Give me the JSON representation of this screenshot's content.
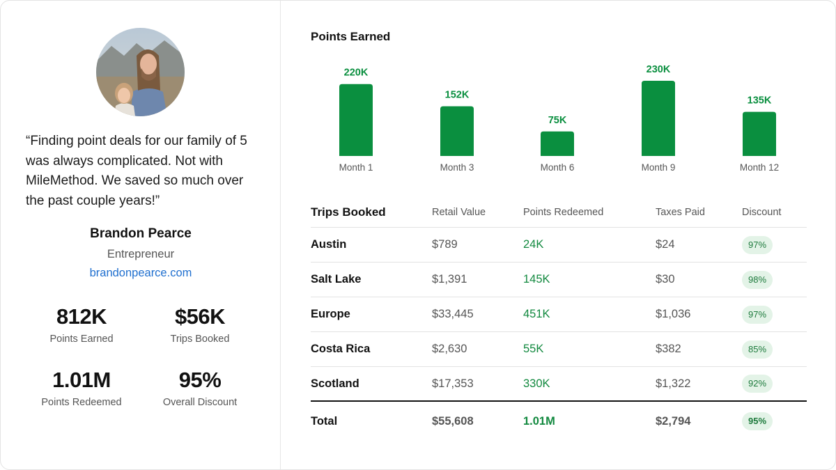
{
  "testimonial": {
    "quote": "“Finding point deals for our family of 5 was always complicated. Not with MileMethod. We saved so much over the past couple years!”",
    "name": "Brandon Pearce",
    "role": "Entrepreneur",
    "website": "brandonpearce.com"
  },
  "stats": [
    {
      "value": "812K",
      "label": "Points Earned"
    },
    {
      "value": "$56K",
      "label": "Trips Booked"
    },
    {
      "value": "1.01M",
      "label": "Points Redeemed"
    },
    {
      "value": "95%",
      "label": "Overall Discount"
    }
  ],
  "chart_data": {
    "type": "bar",
    "title": "Points Earned",
    "categories": [
      "Month 1",
      "Month 3",
      "Month 6",
      "Month 9",
      "Month 12"
    ],
    "values": [
      220,
      152,
      75,
      230,
      135
    ],
    "value_labels": [
      "220K",
      "152K",
      "75K",
      "230K",
      "135K"
    ],
    "unit": "K",
    "ylim": [
      0,
      230
    ],
    "grid": false,
    "bar_color": "#0a8f3f",
    "label_color": "#0a8f3f"
  },
  "table": {
    "headers": [
      "Trips Booked",
      "Retail Value",
      "Points Redeemed",
      "Taxes Paid",
      "Discount"
    ],
    "rows": [
      [
        "Austin",
        "$789",
        "24K",
        "$24",
        "97%"
      ],
      [
        "Salt Lake",
        "$1,391",
        "145K",
        "$30",
        "98%"
      ],
      [
        "Europe",
        "$33,445",
        "451K",
        "$1,036",
        "97%"
      ],
      [
        "Costa Rica",
        "$2,630",
        "55K",
        "$382",
        "85%"
      ],
      [
        "Scotland",
        "$17,353",
        "330K",
        "$1,322",
        "92%"
      ]
    ],
    "total": [
      "Total",
      "$55,608",
      "1.01M",
      "$2,794",
      "95%"
    ]
  },
  "colors": {
    "accent_green": "#0a8f3f",
    "badge_bg": "#e3f3e7",
    "link_blue": "#1f6fcf"
  }
}
